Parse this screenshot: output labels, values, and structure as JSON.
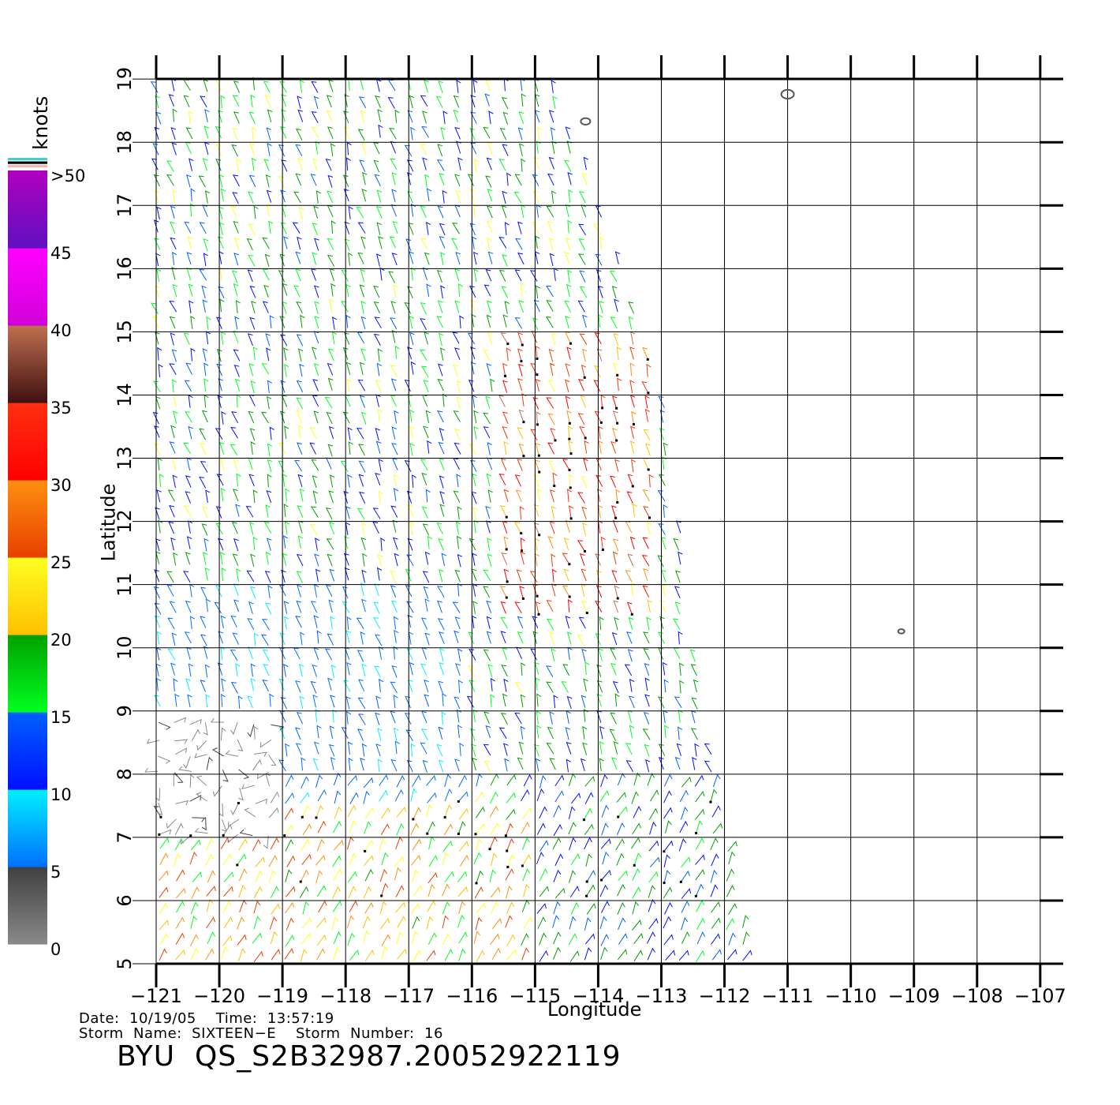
{
  "map": {
    "lon_min": -121,
    "lon_max": -106.6,
    "lat_min": 5,
    "lat_max": 19,
    "lon_ticks": [
      -121,
      -120,
      -119,
      -118,
      -117,
      -116,
      -115,
      -114,
      -113,
      -112,
      -111,
      -110,
      -109,
      -108,
      -107
    ],
    "lat_ticks": [
      5,
      6,
      7,
      8,
      9,
      10,
      11,
      12,
      13,
      14,
      15,
      16,
      17,
      18,
      19
    ],
    "lon_tick_labels": [
      "−121",
      "−120",
      "−119",
      "−118",
      "−117",
      "−116",
      "−115",
      "−114",
      "−113",
      "−112",
      "−111",
      "−110",
      "−109",
      "−108",
      "−107"
    ],
    "lat_tick_labels": [
      "5",
      "6",
      "7",
      "8",
      "9",
      "10",
      "11",
      "12",
      "13",
      "14",
      "15",
      "16",
      "17",
      "18",
      "19"
    ],
    "xlabel": "Longitude",
    "ylabel": "Latitude",
    "grid": true,
    "islands": [
      {
        "name": "",
        "lon": -114.2,
        "lat": 18.33
      },
      {
        "name": "",
        "lon": -111.0,
        "lat": 18.76
      },
      {
        "name": "",
        "lon": -109.2,
        "lat": 10.26
      }
    ],
    "swath": {
      "left_lon": -121,
      "right_edge": [
        [
          -114.7,
          19
        ],
        [
          -113.0,
          14.2
        ],
        [
          -112.4,
          9.5
        ],
        [
          -111.6,
          5
        ]
      ]
    }
  },
  "colorbar": {
    "unit": "knots",
    "labels": [
      ">50",
      "45",
      "40",
      "35",
      "30",
      "25",
      "20",
      "15",
      "10",
      "5",
      "0"
    ],
    "ranges": [
      {
        "min": 0,
        "max": 5,
        "top": "#404040",
        "bottom": "#8a8a8a"
      },
      {
        "min": 5,
        "max": 10,
        "top": "#00f0ff",
        "bottom": "#0070ff"
      },
      {
        "min": 10,
        "max": 15,
        "top": "#0060ff",
        "bottom": "#0010ff"
      },
      {
        "min": 15,
        "max": 20,
        "top": "#00a000",
        "bottom": "#00ff20"
      },
      {
        "min": 20,
        "max": 25,
        "top": "#ffff20",
        "bottom": "#ffc000"
      },
      {
        "min": 25,
        "max": 30,
        "top": "#ff9010",
        "bottom": "#e84000"
      },
      {
        "min": 30,
        "max": 35,
        "top": "#ff3010",
        "bottom": "#ff0000"
      },
      {
        "min": 35,
        "max": 40,
        "top": "#c07050",
        "bottom": "#401010"
      },
      {
        "min": 40,
        "max": 45,
        "top": "#ff00ff",
        "bottom": "#d000d8"
      },
      {
        "min": 45,
        "max": 50,
        "top": "#b000c0",
        "bottom": "#6010c0"
      }
    ],
    "over_colors": [
      "#40d0d0",
      "#000000",
      "#ffb0b0"
    ]
  },
  "wind_field": {
    "type": "vector-barbs",
    "rain_flag_color": "#000000",
    "regions": [
      {
        "area": "-121 to -119, 6.9 to 9",
        "speed_knots": "0-5"
      },
      {
        "area": "-121 to -117, 8 to 19",
        "speed_knots": "10-20"
      },
      {
        "area": "-115.6 to -113, 10.5 to 15",
        "speed_knots": "20-35"
      },
      {
        "area": "-121 to -115, 5 to 7.5",
        "speed_knots": "15-30"
      },
      {
        "area": "-115 to -111.6, 5 to 10",
        "speed_knots": "10-20"
      }
    ]
  },
  "footer": {
    "line1": "Date:  10/19/05    Time:  13:57:19",
    "line2": "Storm  Name:  SIXTEEN−E    Storm  Number:  16",
    "title": "BYU  QS_S2B32987.20052922119"
  }
}
